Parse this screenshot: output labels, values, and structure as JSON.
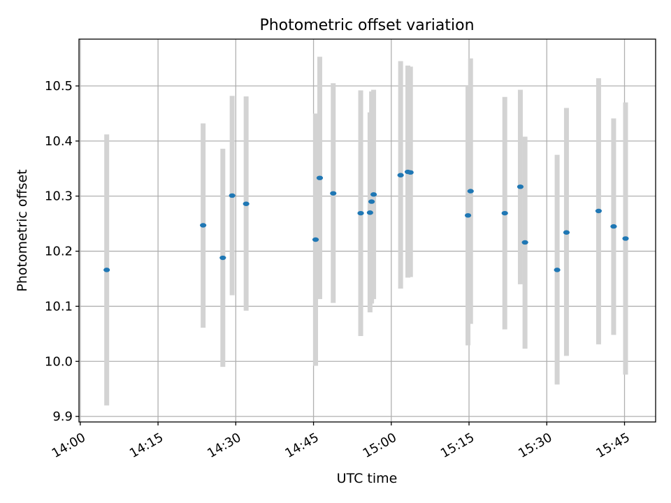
{
  "chart_data": {
    "type": "scatter",
    "title": "Photometric offset variation",
    "xlabel": "UTC time",
    "ylabel": "Photometric offset",
    "x_range": [
      "13:59:45",
      "15:51:00"
    ],
    "ylim": [
      9.89,
      10.585
    ],
    "grid": true,
    "y_ticks": [
      "9.9",
      "10.0",
      "10.1",
      "10.2",
      "10.3",
      "10.4",
      "10.5"
    ],
    "x_ticks": [
      "14:00",
      "14:15",
      "14:30",
      "14:45",
      "15:00",
      "15:15",
      "15:30",
      "15:45"
    ],
    "colors": {
      "point": "#1f77b4",
      "errorbar": "#d3d3d3",
      "grid": "#b0b0b0"
    },
    "series": [
      {
        "points": [
          {
            "x": "14:05:06",
            "y": 10.166,
            "ylow": 9.92,
            "yhigh": 10.412
          },
          {
            "x": "14:23:42",
            "y": 10.247,
            "ylow": 10.061,
            "yhigh": 10.432
          },
          {
            "x": "14:27:30",
            "y": 10.188,
            "ylow": 9.99,
            "yhigh": 10.386
          },
          {
            "x": "14:29:18",
            "y": 10.301,
            "ylow": 10.12,
            "yhigh": 10.482
          },
          {
            "x": "14:32:00",
            "y": 10.286,
            "ylow": 10.092,
            "yhigh": 10.481
          },
          {
            "x": "14:45:24",
            "y": 10.221,
            "ylow": 9.992,
            "yhigh": 10.45
          },
          {
            "x": "14:46:12",
            "y": 10.333,
            "ylow": 10.113,
            "yhigh": 10.553
          },
          {
            "x": "14:48:48",
            "y": 10.305,
            "ylow": 10.106,
            "yhigh": 10.505
          },
          {
            "x": "14:54:06",
            "y": 10.269,
            "ylow": 10.046,
            "yhigh": 10.492
          },
          {
            "x": "14:55:54",
            "y": 10.27,
            "ylow": 10.089,
            "yhigh": 10.452
          },
          {
            "x": "14:56:12",
            "y": 10.29,
            "ylow": 10.105,
            "yhigh": 10.49
          },
          {
            "x": "14:56:36",
            "y": 10.303,
            "ylow": 10.113,
            "yhigh": 10.493
          },
          {
            "x": "15:01:48",
            "y": 10.338,
            "ylow": 10.132,
            "yhigh": 10.545
          },
          {
            "x": "15:03:12",
            "y": 10.344,
            "ylow": 10.152,
            "yhigh": 10.537
          },
          {
            "x": "15:03:42",
            "y": 10.343,
            "ylow": 10.153,
            "yhigh": 10.535
          },
          {
            "x": "15:14:48",
            "y": 10.265,
            "ylow": 10.029,
            "yhigh": 10.5
          },
          {
            "x": "15:15:18",
            "y": 10.309,
            "ylow": 10.068,
            "yhigh": 10.55
          },
          {
            "x": "15:21:54",
            "y": 10.269,
            "ylow": 10.058,
            "yhigh": 10.48
          },
          {
            "x": "15:24:54",
            "y": 10.317,
            "ylow": 10.14,
            "yhigh": 10.493
          },
          {
            "x": "15:25:48",
            "y": 10.216,
            "ylow": 10.023,
            "yhigh": 10.408
          },
          {
            "x": "15:32:00",
            "y": 10.166,
            "ylow": 9.958,
            "yhigh": 10.375
          },
          {
            "x": "15:33:48",
            "y": 10.234,
            "ylow": 10.01,
            "yhigh": 10.46
          },
          {
            "x": "15:40:00",
            "y": 10.273,
            "ylow": 10.031,
            "yhigh": 10.514
          },
          {
            "x": "15:42:54",
            "y": 10.245,
            "ylow": 10.048,
            "yhigh": 10.441
          },
          {
            "x": "15:45:12",
            "y": 10.223,
            "ylow": 9.976,
            "yhigh": 10.47
          }
        ]
      }
    ]
  }
}
